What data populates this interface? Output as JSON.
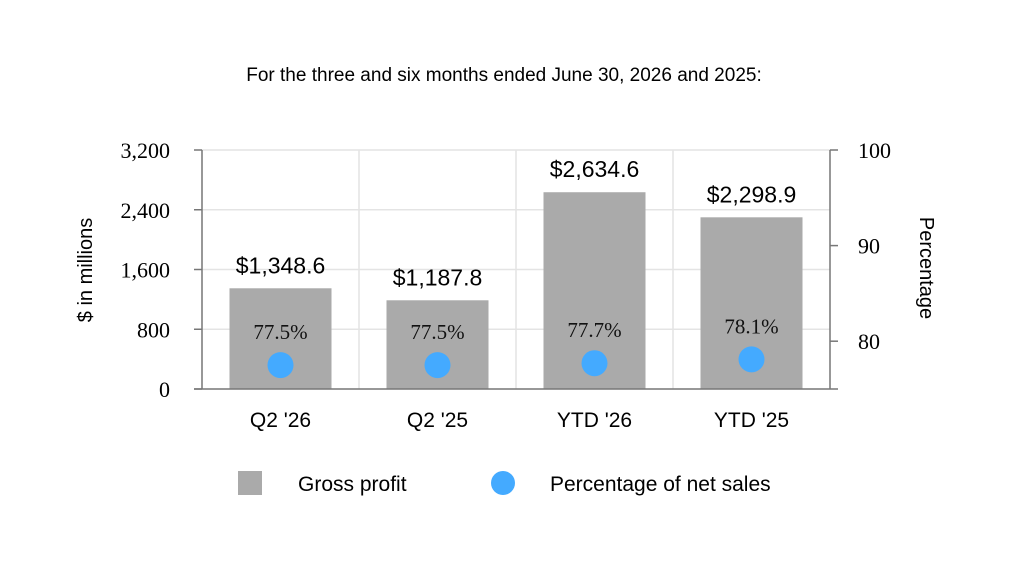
{
  "chart_data": {
    "type": "bar",
    "title": "For the three and six months ended June 30, 2026 and 2025:",
    "categories": [
      "Q2 '26",
      "Q2 '25",
      "YTD '26",
      "YTD '25"
    ],
    "series": [
      {
        "name": "Gross profit",
        "type": "bar",
        "axis": "left",
        "values": [
          1348.6,
          1187.8,
          2634.6,
          2298.9
        ],
        "labels": [
          "$1,348.6",
          "$1,187.8",
          "$2,634.6",
          "$2,298.9"
        ],
        "color": "#aaaaaa"
      },
      {
        "name": "Percentage of net sales",
        "type": "scatter",
        "axis": "right",
        "values": [
          77.5,
          77.5,
          77.7,
          78.1
        ],
        "labels": [
          "77.5%",
          "77.5%",
          "77.7%",
          "78.1%"
        ],
        "color": "#44aaff"
      }
    ],
    "ylabel": "$ in millions",
    "ylim": [
      0,
      3200
    ],
    "yticks": [
      0,
      800,
      1600,
      2400,
      3200
    ],
    "ytick_labels": [
      "0",
      "800",
      "1,600",
      "2,400",
      "3,200"
    ],
    "y2label": "Percentage",
    "y2lim": [
      75,
      100
    ],
    "y2ticks": [
      80,
      90,
      100
    ],
    "y2tick_labels": [
      "80",
      "90",
      "100"
    ],
    "grid": true,
    "legend_position": "bottom"
  }
}
